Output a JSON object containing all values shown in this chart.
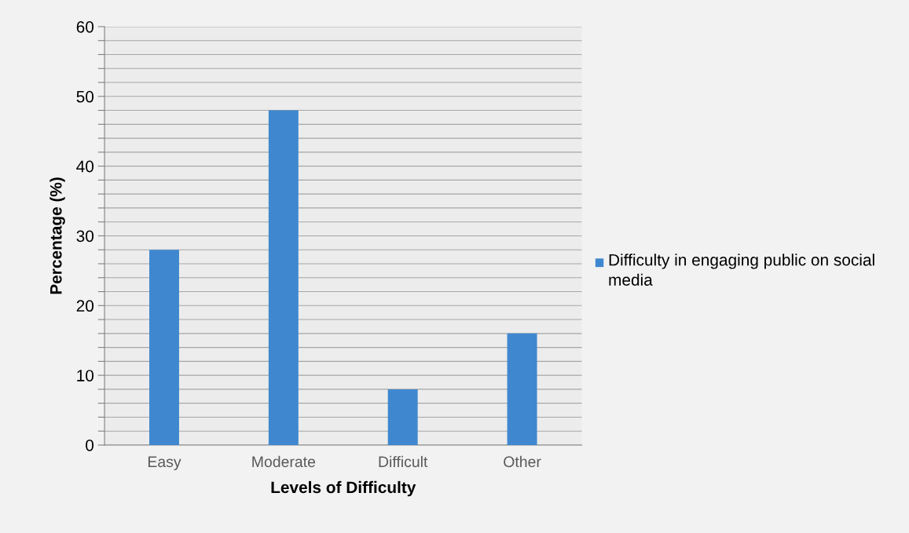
{
  "chart_data": {
    "type": "bar",
    "xlabel": "Levels of Difficulty",
    "ylabel": "Percentage (%)",
    "categories": [
      "Easy",
      "Moderate",
      "Difficult",
      "Other"
    ],
    "series": [
      {
        "name": "Difficulty in engaging public on social media",
        "color": "#3f88d0",
        "values": [
          28,
          48,
          8,
          16
        ]
      }
    ],
    "ylim": [
      0,
      60
    ],
    "yticks": [
      0,
      {
        "value": 2,
        "label": null
      },
      {
        "value": 4,
        "label": null
      },
      {
        "value": 6,
        "label": null
      },
      {
        "value": 8,
        "label": null
      },
      10,
      {
        "value": 12,
        "label": null
      },
      {
        "value": 14,
        "label": null
      },
      {
        "value": 16,
        "label": null
      },
      {
        "value": 18,
        "label": null
      },
      20,
      {
        "value": 22,
        "label": null
      },
      {
        "value": 24,
        "label": null
      },
      {
        "value": 26,
        "label": null
      },
      {
        "value": 28,
        "label": null
      },
      30,
      {
        "value": 32,
        "label": null
      },
      {
        "value": 34,
        "label": null
      },
      {
        "value": 36,
        "label": null
      },
      {
        "value": 38,
        "label": null
      },
      40,
      {
        "value": 42,
        "label": null
      },
      {
        "value": 44,
        "label": null
      },
      {
        "value": 46,
        "label": null
      },
      {
        "value": 48,
        "label": null
      },
      50,
      {
        "value": 52,
        "label": null
      },
      {
        "value": 54,
        "label": null
      },
      {
        "value": 56,
        "label": null
      },
      {
        "value": 58,
        "label": null
      },
      60
    ],
    "grid": "y",
    "legend": "right"
  }
}
